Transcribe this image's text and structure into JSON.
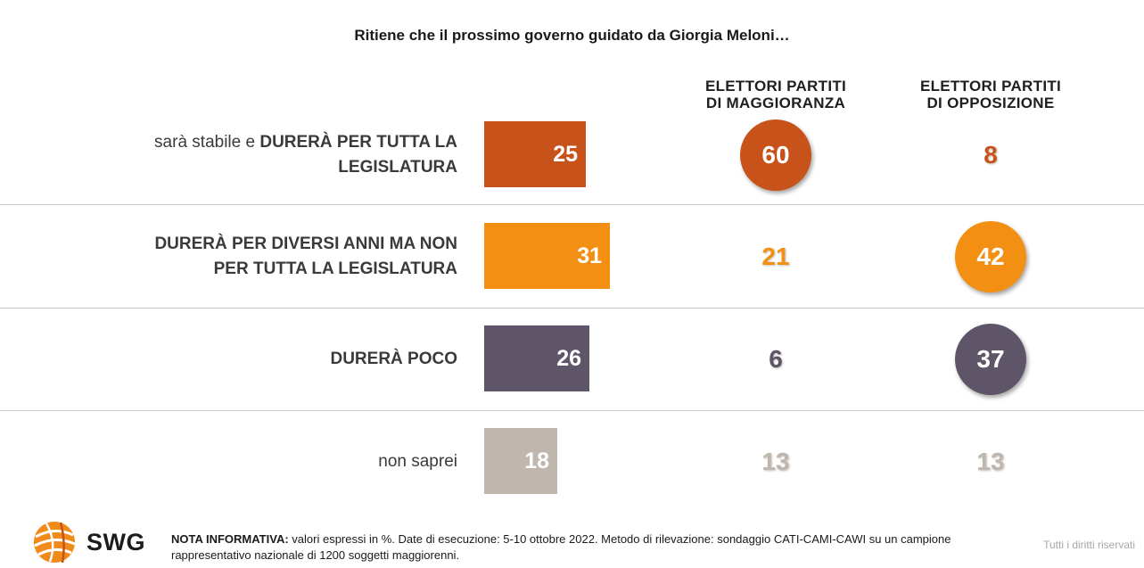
{
  "title": "Ritiene che il prossimo governo guidato da Giorgia Meloni…",
  "columns": {
    "maj": [
      "ELETTORI PARTITI",
      "DI MAGGIORANZA"
    ],
    "opp": [
      "ELETTORI PARTITI",
      "DI OPPOSIZIONE"
    ]
  },
  "chart_data": {
    "type": "bar",
    "title": "Ritiene che il prossimo governo guidato da Giorgia Meloni…",
    "categories": [
      "sarà stabile e DURERÀ PER TUTTA LA LEGISLATURA",
      "DURERÀ PER DIVERSI ANNI MA NON PER TUTTA LA LEGISLATURA",
      "DURERÀ POCO",
      "non saprei"
    ],
    "values": [
      25,
      31,
      26,
      18
    ],
    "unit": "%",
    "colors": [
      "#c8531a",
      "#f39014",
      "#5e5568",
      "#bfb6ae"
    ],
    "breakdown": {
      "ELETTORI PARTITI DI MAGGIORANZA": [
        60,
        21,
        6,
        13
      ],
      "ELETTORI PARTITI DI OPPOSIZIONE": [
        8,
        42,
        37,
        13
      ]
    },
    "highlighted": {
      "ELETTORI PARTITI DI MAGGIORANZA": [
        true,
        false,
        false,
        false
      ],
      "ELETTORI PARTITI DI OPPOSIZIONE": [
        false,
        true,
        true,
        false
      ]
    }
  },
  "rows": [
    {
      "label_line1_light": "sarà stabile e ",
      "label_line1_bold": "DURERÀ PER TUTTA LA",
      "label_line2_light": "",
      "label_line2_bold": "LEGISLATURA"
    },
    {
      "label_line1_light": "",
      "label_line1_bold": "DURERÀ PER DIVERSI ANNI MA NON",
      "label_line2_light": "",
      "label_line2_bold": "PER TUTTA LA LEGISLATURA"
    },
    {
      "label_line1_light": "",
      "label_line1_bold": "DURERÀ POCO",
      "label_line2_light": "",
      "label_line2_bold": ""
    },
    {
      "label_line1_light": "non saprei",
      "label_line1_bold": "",
      "label_line2_light": "",
      "label_line2_bold": ""
    }
  ],
  "footer": {
    "brand": "SWG",
    "note_bold": "NOTA INFORMATIVA:",
    "note_text": " valori espressi in %. Date di esecuzione: 5-10 ottobre 2022. Metodo di rilevazione: sondaggio CATI-CAMI-CAWI su un campione rappresentativo nazionale di 1200 soggetti maggiorenni.",
    "rights": "Tutti i diritti riservati"
  },
  "logo_colors": {
    "orange": "#f08a18",
    "dark_orange": "#c8531a"
  }
}
